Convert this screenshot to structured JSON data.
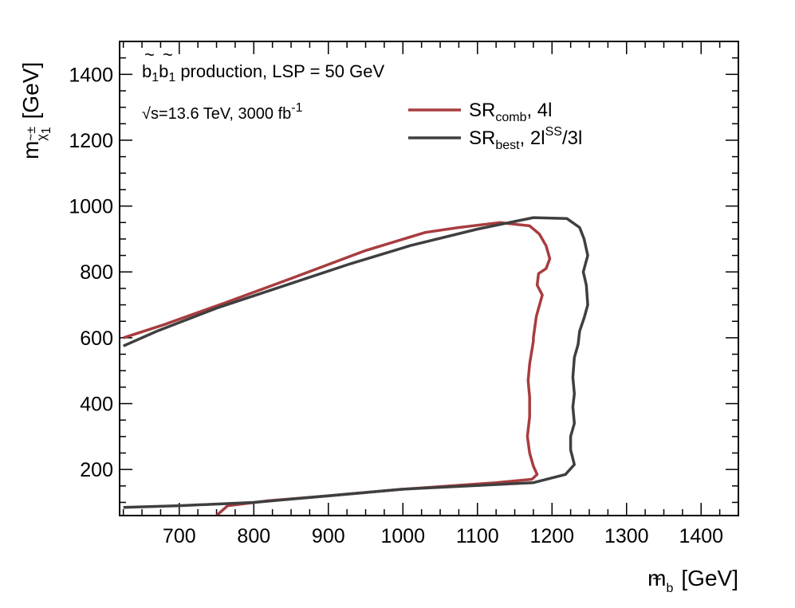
{
  "chart_data": {
    "type": "line",
    "title": "",
    "xlabel": "m_b~ [GeV]",
    "ylabel": "m_χ~±1 [GeV]",
    "xlim": [
      620,
      1450
    ],
    "ylim": [
      60,
      1500
    ],
    "x_ticks": [
      700,
      800,
      900,
      1000,
      1100,
      1200,
      1300,
      1400
    ],
    "y_ticks": [
      200,
      400,
      600,
      800,
      1000,
      1200,
      1400
    ],
    "x_tick_labels": [
      "700",
      "800",
      "900",
      "1000",
      "1100",
      "1200",
      "1300",
      "1400"
    ],
    "y_tick_labels": [
      "200",
      "400",
      "600",
      "800",
      "1000",
      "1200",
      "1400"
    ],
    "xlabel_parts": {
      "main": "m",
      "sub": "b",
      "subaccent": "~",
      "unit": "[GeV]"
    },
    "ylabel_parts": {
      "main": "m",
      "sub": "χ",
      "subaccent": "~±",
      "subsub": "1",
      "unit": "[GeV]"
    },
    "annotations": {
      "process": {
        "b": "b",
        "tilde": "~",
        "sub": "1",
        "text": "production, LSP = 50 GeV"
      },
      "energy": {
        "sqrt": "√",
        "s": "s",
        "text": "=13.6 TeV, 3000 fb",
        "sup": "-1"
      }
    },
    "legend": {
      "placement": "top-right",
      "entries": [
        {
          "main": "SR",
          "sub": "comb",
          "rest": ", 4l",
          "color": "#a83c3f"
        },
        {
          "main": "SR",
          "sub": "best",
          "mid": ", 2l",
          "sup": "SS",
          "rest": "/3l",
          "color": "#3f3f3f"
        }
      ]
    },
    "series": [
      {
        "name": "SR_comb, 4l",
        "color": "#a83c3f",
        "x": [
          625,
          680,
          760,
          850,
          950,
          1030,
          1075,
          1130,
          1170,
          1183,
          1192,
          1197,
          1192,
          1182,
          1180,
          1187,
          1179,
          1175,
          1175,
          1170,
          1168,
          1170,
          1170,
          1167,
          1170,
          1175,
          1180,
          1173,
          1125,
          1000,
          900,
          820,
          765,
          750
        ],
        "y": [
          600,
          640,
          705,
          780,
          865,
          920,
          935,
          950,
          940,
          915,
          880,
          840,
          810,
          795,
          760,
          730,
          665,
          600,
          590,
          520,
          470,
          420,
          360,
          300,
          250,
          210,
          185,
          170,
          160,
          140,
          120,
          105,
          90,
          60
        ]
      },
      {
        "name": "SR_best, 2l^SS/3l",
        "color": "#3f3f3f",
        "x": [
          625,
          670,
          750,
          850,
          930,
          1010,
          1100,
          1175,
          1220,
          1237,
          1243,
          1248,
          1242,
          1246,
          1248,
          1243,
          1237,
          1235,
          1230,
          1228,
          1230,
          1228,
          1230,
          1225,
          1225,
          1230,
          1218,
          1175,
          1000,
          800,
          700,
          625
        ],
        "y": [
          575,
          620,
          690,
          765,
          825,
          880,
          930,
          965,
          962,
          935,
          900,
          850,
          800,
          760,
          700,
          660,
          620,
          580,
          540,
          480,
          430,
          390,
          340,
          300,
          260,
          215,
          185,
          160,
          140,
          100,
          90,
          85
        ]
      }
    ]
  }
}
